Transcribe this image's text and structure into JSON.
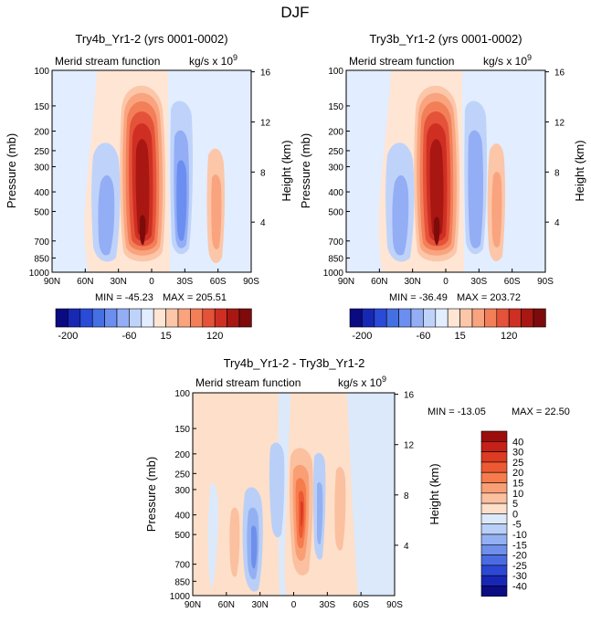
{
  "page_title": "DJF",
  "chart_data": [
    {
      "type": "contour",
      "title": "Try4b_Yr1-2 (yrs 0001-0002)",
      "subtitle_left": "Merid stream function",
      "units": "kg/s x 10^9",
      "units_base": "kg/s x 10",
      "units_exp": "9",
      "ylabel": "Pressure (mb)",
      "ylabel_right": "Height (km)",
      "x_ticks": [
        "90N",
        "60N",
        "30N",
        "0",
        "30S",
        "60S",
        "90S"
      ],
      "x_range": [
        90,
        -90
      ],
      "y_ticks": [
        "100",
        "150",
        "200",
        "250",
        "300",
        "400",
        "500",
        "700",
        "850",
        "1000"
      ],
      "y_range": [
        100,
        1000
      ],
      "height_ticks": [
        "16",
        "12",
        "8",
        "4"
      ],
      "min_text": "MIN = -45.23",
      "max_text": "MAX = 205.51",
      "min": -45.23,
      "max": 205.51
    },
    {
      "type": "contour",
      "title": "Try3b_Yr1-2 (yrs 0001-0002)",
      "subtitle_left": "Merid stream function",
      "units": "kg/s x 10^9",
      "units_base": "kg/s x 10",
      "units_exp": "9",
      "ylabel": "Pressure (mb)",
      "ylabel_right": "Height (km)",
      "x_ticks": [
        "90N",
        "60N",
        "30N",
        "0",
        "30S",
        "60S",
        "90S"
      ],
      "x_range": [
        90,
        -90
      ],
      "y_ticks": [
        "100",
        "150",
        "200",
        "250",
        "300",
        "400",
        "500",
        "700",
        "850",
        "1000"
      ],
      "y_range": [
        100,
        1000
      ],
      "height_ticks": [
        "16",
        "12",
        "8",
        "4"
      ],
      "min_text": "MIN = -36.49",
      "max_text": "MAX = 203.72",
      "min": -36.49,
      "max": 203.72
    },
    {
      "type": "contour",
      "title": "Try4b_Yr1-2 - Try3b_Yr1-2",
      "subtitle_left": "Merid stream function",
      "units": "kg/s x 10^9",
      "units_base": "kg/s x 10",
      "units_exp": "9",
      "ylabel": "Pressure (mb)",
      "ylabel_right": "Height (km)",
      "x_ticks": [
        "90N",
        "60N",
        "30N",
        "0",
        "30S",
        "60S",
        "90S"
      ],
      "x_range": [
        90,
        -90
      ],
      "y_ticks": [
        "100",
        "150",
        "200",
        "250",
        "300",
        "400",
        "500",
        "700",
        "850",
        "1000"
      ],
      "y_range": [
        100,
        1000
      ],
      "height_ticks": [
        "16",
        "12",
        "8",
        "4"
      ],
      "min_text": "MIN = -13.05",
      "max_text": "MAX =   22.50",
      "min": -13.05,
      "max": 22.5
    }
  ],
  "colorbar_top": {
    "labels": [
      "-200",
      "-60",
      "15",
      "120"
    ],
    "colors": [
      "#0a0a82",
      "#1728b4",
      "#2a4bd7",
      "#4570e4",
      "#6b8ef0",
      "#93aef5",
      "#bfd3fa",
      "#e2edff",
      "#ffe5d4",
      "#fcc6a8",
      "#f9a47f",
      "#f27f58",
      "#e5523a",
      "#cf2f22",
      "#a81712",
      "#7d0b0b"
    ]
  },
  "colorbar_diff": {
    "labels": [
      "40",
      "30",
      "25",
      "20",
      "15",
      "10",
      "5",
      "0",
      "-5",
      "-10",
      "-15",
      "-20",
      "-25",
      "-30",
      "-40"
    ],
    "colors": [
      "#9b0e0c",
      "#c42118",
      "#dd3b22",
      "#ec5a33",
      "#f67c4e",
      "#f99f75",
      "#fbc09f",
      "#fddfca",
      "#dce9fb",
      "#b9cff7",
      "#93b1f2",
      "#6e8fea",
      "#4b6be2",
      "#2c47d4",
      "#1826b5",
      "#0c0c85"
    ]
  }
}
